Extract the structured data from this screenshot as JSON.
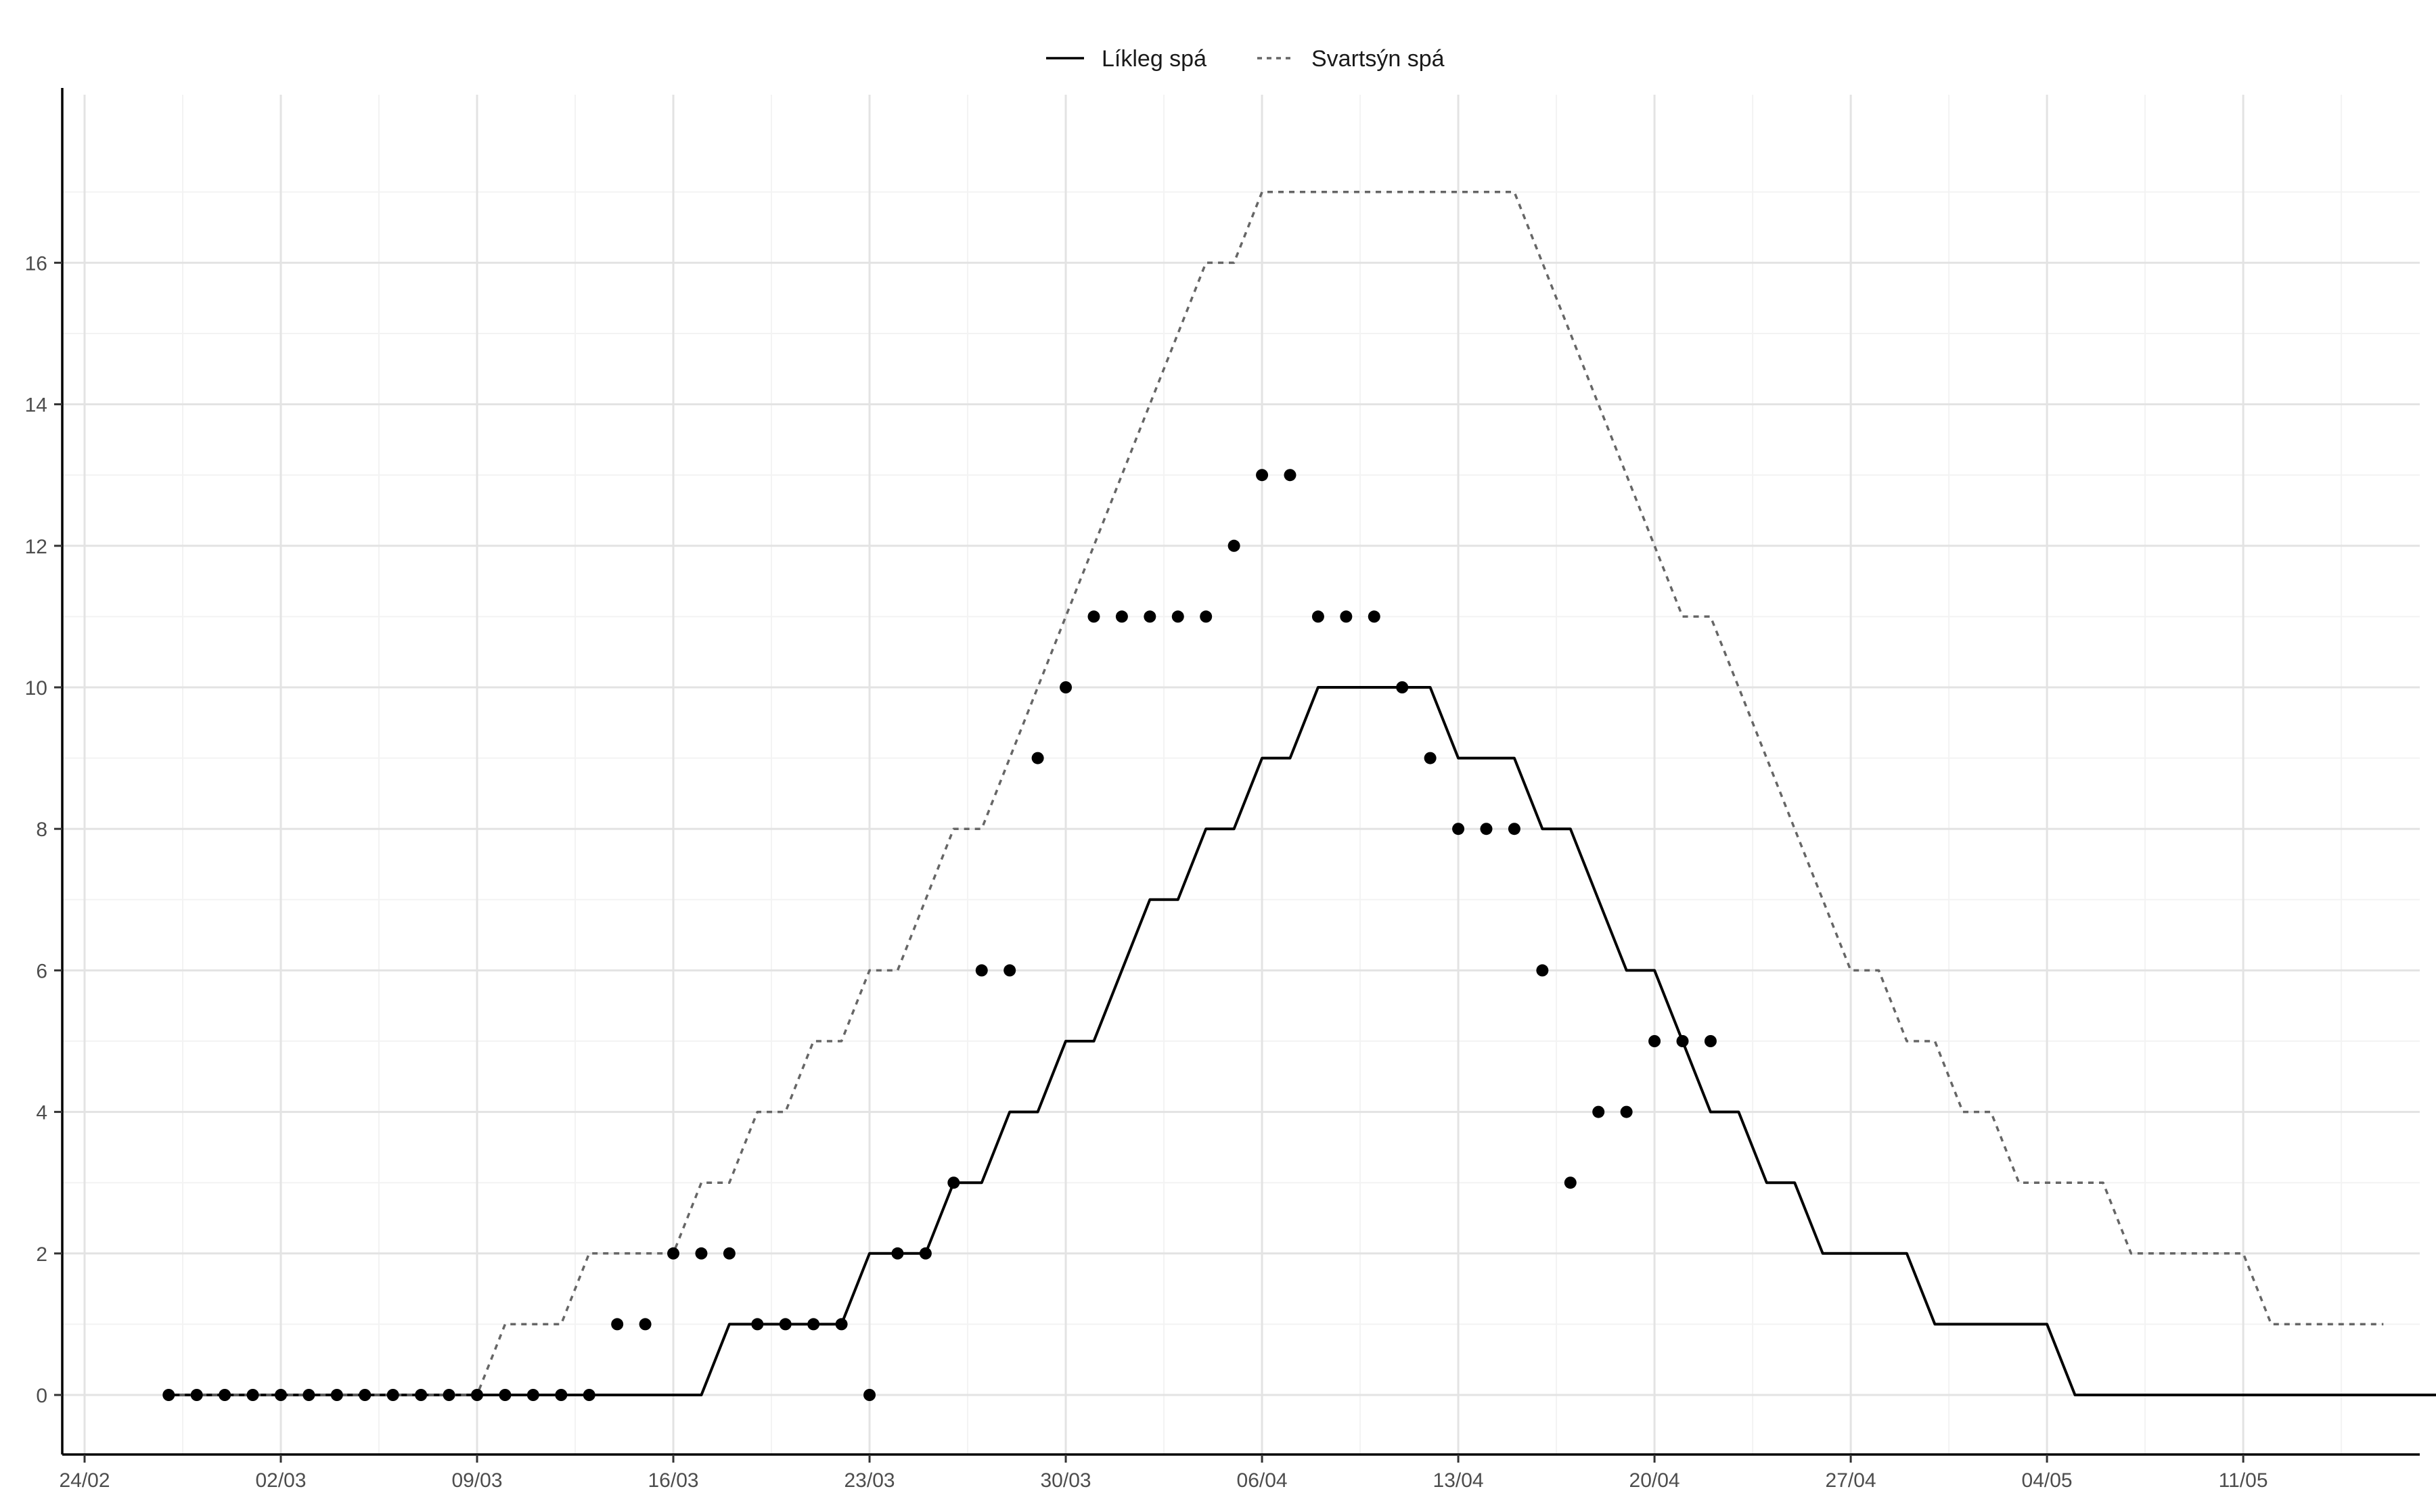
{
  "chart_data": {
    "type": "line",
    "title": "",
    "xlabel": "",
    "ylabel": "",
    "x_start_date": "2020-02-24",
    "xlim": [
      "2020-02-24",
      "2020-05-19"
    ],
    "ylim": [
      0,
      17.5
    ],
    "x_ticks": [
      "24/02",
      "02/03",
      "09/03",
      "16/03",
      "23/03",
      "30/03",
      "06/04",
      "13/04",
      "20/04",
      "27/04",
      "04/05",
      "11/05"
    ],
    "y_ticks": [
      0,
      2,
      4,
      6,
      8,
      10,
      12,
      14,
      16
    ],
    "grid": true,
    "legend_position": "top",
    "legend": [
      {
        "label": "Líkleg spá",
        "style": "solid"
      },
      {
        "label": "Svartsýn spá",
        "style": "dashed"
      }
    ],
    "series": [
      {
        "name": "Líkleg spá",
        "style": "solid",
        "color": "#000000",
        "start_date": "2020-02-27",
        "values": [
          0,
          0,
          0,
          0,
          0,
          0,
          0,
          0,
          0,
          0,
          0,
          0,
          0,
          0,
          0,
          0,
          0,
          0,
          0,
          0,
          1,
          1,
          1,
          1,
          1,
          2,
          2,
          2,
          3,
          3,
          4,
          4,
          5,
          5,
          6,
          7,
          7,
          8,
          8,
          9,
          9,
          10,
          10,
          10,
          10,
          10,
          9,
          9,
          9,
          8,
          8,
          7,
          6,
          6,
          5,
          4,
          4,
          3,
          3,
          2,
          2,
          2,
          2,
          1,
          1,
          1,
          1,
          1,
          0,
          0,
          0,
          0,
          0,
          0,
          0,
          0,
          0,
          0,
          0,
          0,
          0,
          0,
          0
        ]
      },
      {
        "name": "Svartsýn spá",
        "style": "dashed",
        "color": "#666666",
        "start_date": "2020-02-27",
        "values": [
          0,
          0,
          0,
          0,
          0,
          0,
          0,
          0,
          0,
          0,
          0,
          0,
          1,
          1,
          1,
          2,
          2,
          2,
          2,
          3,
          3,
          4,
          4,
          5,
          5,
          6,
          6,
          7,
          8,
          8,
          9,
          10,
          11,
          12,
          13,
          14,
          15,
          16,
          16,
          17,
          17,
          17,
          17,
          17,
          17,
          17,
          17,
          17,
          17,
          16,
          15,
          14,
          13,
          12,
          11,
          11,
          10,
          9,
          8,
          7,
          6,
          6,
          5,
          5,
          4,
          4,
          3,
          3,
          3,
          3,
          2,
          2,
          2,
          2,
          2,
          1,
          1,
          1,
          1,
          1
        ]
      },
      {
        "name": "",
        "style": "points",
        "color": "#000000",
        "start_date": "2020-02-27",
        "values": [
          0,
          0,
          0,
          0,
          0,
          0,
          0,
          0,
          0,
          0,
          0,
          0,
          0,
          0,
          0,
          0,
          1,
          1,
          2,
          2,
          2,
          1,
          1,
          1,
          1,
          0,
          2,
          2,
          3,
          6,
          6,
          9,
          10,
          11,
          11,
          11,
          11,
          11,
          12,
          13,
          13,
          11,
          11,
          11,
          10,
          9,
          8,
          8,
          8,
          6,
          3,
          4,
          4,
          5,
          5,
          5
        ]
      }
    ]
  }
}
